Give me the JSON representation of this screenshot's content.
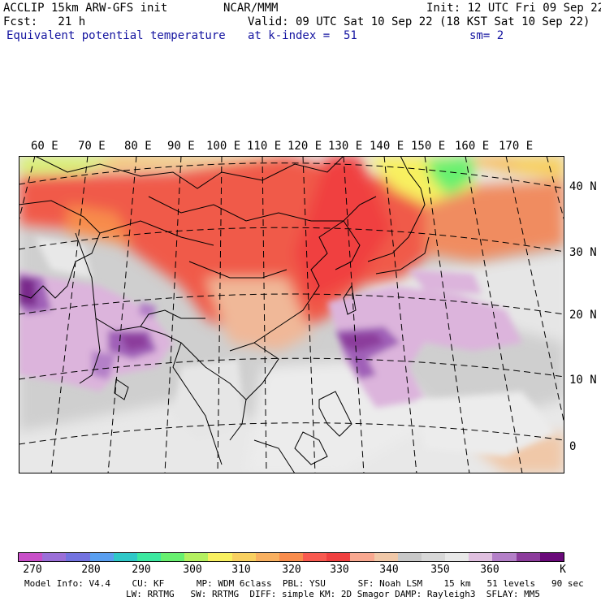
{
  "header": {
    "model_line": "ACCLIP 15km ARW-GFS init",
    "org": "NCAR/MMM",
    "init": "Init: 12 UTC Fri 09 Sep 22",
    "forecast": "Fcst:   21 h",
    "valid": "Valid: 09 UTC Sat 10 Sep 22 (18 KST Sat 10 Sep 22)",
    "field": "Equivalent potential temperature",
    "level": "at k-index =  51",
    "smoothing": "sm= 2"
  },
  "map": {
    "lon_labels": [
      "60 E",
      "70 E",
      "80 E",
      "90 E",
      "100 E",
      "110 E",
      "120 E",
      "130 E",
      "140 E",
      "150 E",
      "160 E",
      "170 E"
    ],
    "lat_labels": [
      "40 N",
      "30 N",
      "20 N",
      "10 N",
      "0"
    ]
  },
  "colorbar": {
    "colors": [
      "#c84fc8",
      "#9b6fd8",
      "#7373e0",
      "#5a9ff0",
      "#2fc8c8",
      "#3ce8a0",
      "#68f070",
      "#b4f060",
      "#f8f060",
      "#f8d060",
      "#f8b060",
      "#f88c4c",
      "#f85a50",
      "#f04040",
      "#f8a890",
      "#f0c8a8",
      "#c8c8c8",
      "#d8d8d8",
      "#e8e8e8",
      "#e0c0e0",
      "#b480c8",
      "#8c3c9c",
      "#6a0a7a"
    ],
    "tick_labels": [
      "270",
      "280",
      "290",
      "300",
      "310",
      "320",
      "330",
      "340",
      "350",
      "360",
      "K"
    ]
  },
  "footer": {
    "line1": "Model Info: V4.4    CU: KF      MP: WDM 6class  PBL: YSU      SF: Noah LSM    15 km   51 levels   90 sec",
    "line2": "LW: RRTMG   SW: RRTMG  DIFF: simple KM: 2D Smagor DAMP: Rayleigh3  SFLAY: MM5"
  }
}
